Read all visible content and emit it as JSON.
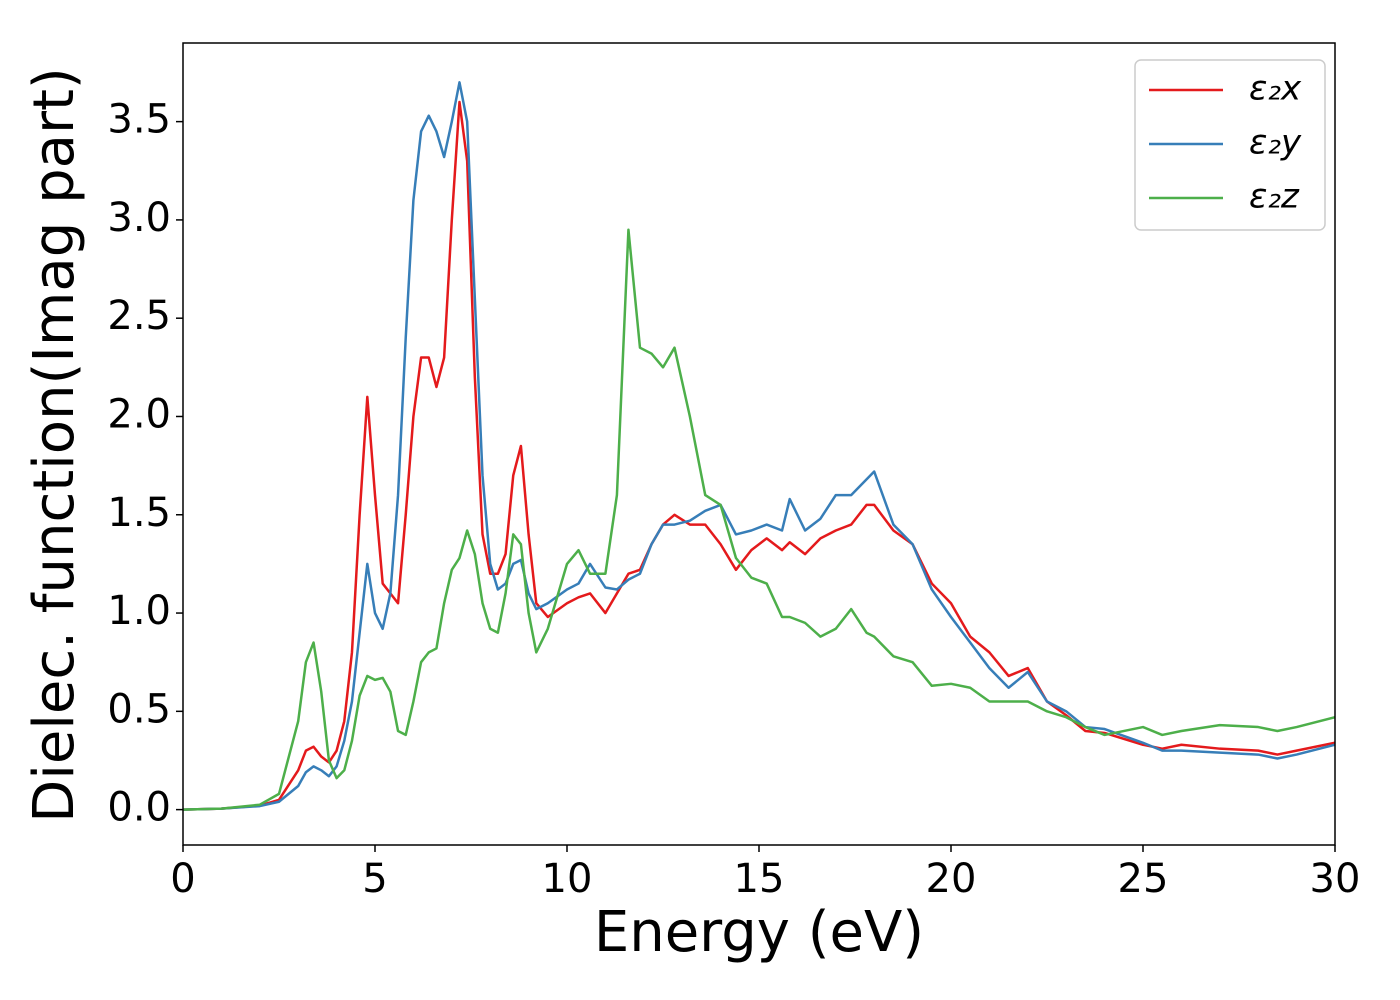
{
  "chart_data": {
    "type": "line",
    "x_label": "Energy (eV)",
    "y_label": "Dielec. function(Imag part)",
    "x": [
      0,
      1,
      2,
      2.5,
      3,
      3.2,
      3.4,
      3.6,
      3.8,
      4,
      4.2,
      4.4,
      4.6,
      4.8,
      5,
      5.2,
      5.4,
      5.6,
      5.8,
      6,
      6.2,
      6.4,
      6.6,
      6.8,
      7,
      7.2,
      7.4,
      7.6,
      7.8,
      8,
      8.2,
      8.4,
      8.6,
      8.8,
      9,
      9.2,
      9.5,
      10,
      10.3,
      10.6,
      11,
      11.3,
      11.6,
      11.9,
      12.2,
      12.5,
      12.8,
      13.2,
      13.6,
      14,
      14.4,
      14.8,
      15.2,
      15.6,
      15.8,
      16.2,
      16.6,
      17,
      17.4,
      17.8,
      18,
      18.5,
      19,
      19.5,
      20,
      20.5,
      21,
      21.5,
      22,
      22.5,
      23,
      23.5,
      24,
      25,
      25.5,
      26,
      27,
      28,
      28.5,
      29,
      30
    ],
    "series": [
      {
        "name": "ε₂x",
        "color": "#e41a1c",
        "values": [
          0,
          0.005,
          0.02,
          0.05,
          0.2,
          0.3,
          0.32,
          0.27,
          0.24,
          0.3,
          0.45,
          0.8,
          1.5,
          2.1,
          1.6,
          1.15,
          1.1,
          1.05,
          1.5,
          2.0,
          2.3,
          2.3,
          2.15,
          2.3,
          3.0,
          3.6,
          3.3,
          2.2,
          1.4,
          1.2,
          1.2,
          1.3,
          1.7,
          1.85,
          1.4,
          1.05,
          0.98,
          1.05,
          1.08,
          1.1,
          1.0,
          1.1,
          1.2,
          1.22,
          1.35,
          1.45,
          1.5,
          1.45,
          1.45,
          1.35,
          1.22,
          1.32,
          1.38,
          1.32,
          1.36,
          1.3,
          1.38,
          1.42,
          1.45,
          1.55,
          1.55,
          1.42,
          1.35,
          1.15,
          1.05,
          0.88,
          0.8,
          0.68,
          0.72,
          0.55,
          0.48,
          0.4,
          0.39,
          0.33,
          0.31,
          0.33,
          0.31,
          0.3,
          0.28,
          0.3,
          0.34
        ]
      },
      {
        "name": "ε₂y",
        "color": "#377eb8",
        "values": [
          0,
          0.005,
          0.018,
          0.04,
          0.12,
          0.19,
          0.22,
          0.2,
          0.17,
          0.22,
          0.35,
          0.55,
          0.9,
          1.25,
          1.0,
          0.92,
          1.1,
          1.6,
          2.4,
          3.1,
          3.45,
          3.53,
          3.45,
          3.32,
          3.5,
          3.7,
          3.5,
          2.6,
          1.7,
          1.25,
          1.12,
          1.15,
          1.25,
          1.27,
          1.1,
          1.02,
          1.05,
          1.12,
          1.15,
          1.25,
          1.13,
          1.12,
          1.17,
          1.2,
          1.35,
          1.45,
          1.45,
          1.47,
          1.52,
          1.55,
          1.4,
          1.42,
          1.45,
          1.42,
          1.58,
          1.42,
          1.48,
          1.6,
          1.6,
          1.68,
          1.72,
          1.45,
          1.35,
          1.12,
          0.98,
          0.85,
          0.72,
          0.62,
          0.7,
          0.55,
          0.5,
          0.42,
          0.41,
          0.34,
          0.3,
          0.3,
          0.29,
          0.28,
          0.26,
          0.28,
          0.33
        ]
      },
      {
        "name": "ε₂z",
        "color": "#4daf4a",
        "values": [
          0,
          0.005,
          0.025,
          0.08,
          0.45,
          0.75,
          0.85,
          0.6,
          0.25,
          0.16,
          0.2,
          0.35,
          0.58,
          0.68,
          0.66,
          0.67,
          0.6,
          0.4,
          0.38,
          0.55,
          0.75,
          0.8,
          0.82,
          1.05,
          1.22,
          1.28,
          1.42,
          1.3,
          1.05,
          0.92,
          0.9,
          1.1,
          1.4,
          1.35,
          1.0,
          0.8,
          0.92,
          1.25,
          1.32,
          1.2,
          1.2,
          1.6,
          2.95,
          2.35,
          2.32,
          2.25,
          2.35,
          2.0,
          1.6,
          1.55,
          1.28,
          1.18,
          1.15,
          0.98,
          0.98,
          0.95,
          0.88,
          0.92,
          1.02,
          0.9,
          0.88,
          0.78,
          0.75,
          0.63,
          0.64,
          0.62,
          0.55,
          0.55,
          0.55,
          0.5,
          0.47,
          0.42,
          0.38,
          0.42,
          0.38,
          0.4,
          0.43,
          0.42,
          0.4,
          0.42,
          0.47
        ]
      }
    ],
    "xlim": [
      0,
      30
    ],
    "xticks": [
      0,
      5,
      10,
      15,
      20,
      25,
      30
    ],
    "ylim": [
      -0.18,
      3.9
    ],
    "yticks": [
      {
        "value": 0,
        "label": "0.0"
      },
      0.5,
      {
        "value": 1,
        "label": "1.0"
      },
      1.5,
      {
        "value": 2,
        "label": "2.0"
      },
      2.5,
      {
        "value": 3,
        "label": "3.0"
      },
      3.5
    ],
    "legend": "upper right",
    "grid": false
  }
}
